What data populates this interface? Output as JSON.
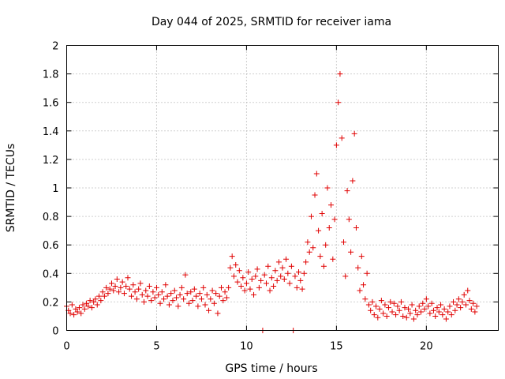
{
  "chart_data": {
    "type": "scatter",
    "title": "Day 044 of 2025, SRMTID for receiver iama",
    "xlabel": "GPS time / hours",
    "ylabel": "SRMTID / TECUs",
    "xlim": [
      0,
      24
    ],
    "ylim": [
      0,
      2
    ],
    "xticks": [
      0,
      5,
      10,
      15,
      20
    ],
    "xtick_labels": [
      "0",
      "5",
      "10",
      "15",
      "20"
    ],
    "yticks": [
      0,
      0.2,
      0.4,
      0.6,
      0.8,
      1.0,
      1.2,
      1.4,
      1.6,
      1.8,
      2.0
    ],
    "ytick_labels": [
      "0",
      "0.2",
      "0.4",
      "0.6",
      "0.8",
      "1",
      "1.2",
      "1.4",
      "1.6",
      "1.8",
      "2"
    ],
    "grid": true,
    "marker": "+",
    "series_color": "#e00000",
    "series": [
      {
        "name": "SRMTID",
        "points": [
          [
            0.0,
            0.17
          ],
          [
            0.1,
            0.14
          ],
          [
            0.2,
            0.12
          ],
          [
            0.3,
            0.18
          ],
          [
            0.4,
            0.11
          ],
          [
            0.5,
            0.15
          ],
          [
            0.6,
            0.13
          ],
          [
            0.7,
            0.16
          ],
          [
            0.8,
            0.12
          ],
          [
            0.9,
            0.18
          ],
          [
            1.0,
            0.15
          ],
          [
            1.1,
            0.19
          ],
          [
            1.2,
            0.17
          ],
          [
            1.3,
            0.21
          ],
          [
            1.4,
            0.16
          ],
          [
            1.5,
            0.2
          ],
          [
            1.6,
            0.22
          ],
          [
            1.7,
            0.18
          ],
          [
            1.8,
            0.24
          ],
          [
            1.9,
            0.21
          ],
          [
            2.0,
            0.27
          ],
          [
            2.1,
            0.24
          ],
          [
            2.2,
            0.3
          ],
          [
            2.3,
            0.26
          ],
          [
            2.4,
            0.29
          ],
          [
            2.5,
            0.33
          ],
          [
            2.6,
            0.28
          ],
          [
            2.7,
            0.31
          ],
          [
            2.8,
            0.36
          ],
          [
            2.9,
            0.27
          ],
          [
            3.0,
            0.3
          ],
          [
            3.1,
            0.34
          ],
          [
            3.2,
            0.26
          ],
          [
            3.3,
            0.31
          ],
          [
            3.4,
            0.37
          ],
          [
            3.5,
            0.29
          ],
          [
            3.6,
            0.24
          ],
          [
            3.7,
            0.32
          ],
          [
            3.8,
            0.27
          ],
          [
            3.9,
            0.22
          ],
          [
            4.0,
            0.29
          ],
          [
            4.1,
            0.33
          ],
          [
            4.2,
            0.25
          ],
          [
            4.3,
            0.2
          ],
          [
            4.4,
            0.28
          ],
          [
            4.5,
            0.24
          ],
          [
            4.6,
            0.31
          ],
          [
            4.7,
            0.21
          ],
          [
            4.8,
            0.27
          ],
          [
            4.9,
            0.23
          ],
          [
            5.0,
            0.3
          ],
          [
            5.1,
            0.25
          ],
          [
            5.2,
            0.19
          ],
          [
            5.3,
            0.27
          ],
          [
            5.4,
            0.22
          ],
          [
            5.5,
            0.32
          ],
          [
            5.6,
            0.24
          ],
          [
            5.7,
            0.18
          ],
          [
            5.8,
            0.26
          ],
          [
            5.9,
            0.21
          ],
          [
            6.0,
            0.28
          ],
          [
            6.1,
            0.23
          ],
          [
            6.2,
            0.17
          ],
          [
            6.3,
            0.25
          ],
          [
            6.4,
            0.3
          ],
          [
            6.5,
            0.22
          ],
          [
            6.6,
            0.39
          ],
          [
            6.7,
            0.26
          ],
          [
            6.8,
            0.19
          ],
          [
            6.9,
            0.27
          ],
          [
            7.0,
            0.21
          ],
          [
            7.1,
            0.29
          ],
          [
            7.2,
            0.24
          ],
          [
            7.3,
            0.17
          ],
          [
            7.4,
            0.26
          ],
          [
            7.5,
            0.22
          ],
          [
            7.6,
            0.3
          ],
          [
            7.7,
            0.18
          ],
          [
            7.8,
            0.25
          ],
          [
            7.9,
            0.14
          ],
          [
            8.0,
            0.22
          ],
          [
            8.1,
            0.28
          ],
          [
            8.2,
            0.19
          ],
          [
            8.3,
            0.26
          ],
          [
            8.4,
            0.12
          ],
          [
            8.5,
            0.24
          ],
          [
            8.6,
            0.3
          ],
          [
            8.7,
            0.21
          ],
          [
            8.8,
            0.27
          ],
          [
            8.9,
            0.23
          ],
          [
            9.0,
            0.3
          ],
          [
            9.1,
            0.44
          ],
          [
            9.2,
            0.52
          ],
          [
            9.3,
            0.38
          ],
          [
            9.4,
            0.46
          ],
          [
            9.5,
            0.34
          ],
          [
            9.6,
            0.42
          ],
          [
            9.7,
            0.31
          ],
          [
            9.8,
            0.37
          ],
          [
            9.9,
            0.28
          ],
          [
            10.0,
            0.33
          ],
          [
            10.1,
            0.41
          ],
          [
            10.2,
            0.29
          ],
          [
            10.3,
            0.36
          ],
          [
            10.4,
            0.25
          ],
          [
            10.5,
            0.38
          ],
          [
            10.6,
            0.43
          ],
          [
            10.7,
            0.3
          ],
          [
            10.8,
            0.35
          ],
          [
            10.9,
            0.0
          ],
          [
            11.0,
            0.39
          ],
          [
            11.1,
            0.33
          ],
          [
            11.2,
            0.45
          ],
          [
            11.3,
            0.28
          ],
          [
            11.4,
            0.37
          ],
          [
            11.5,
            0.31
          ],
          [
            11.6,
            0.42
          ],
          [
            11.7,
            0.35
          ],
          [
            11.8,
            0.48
          ],
          [
            11.9,
            0.38
          ],
          [
            12.0,
            0.44
          ],
          [
            12.1,
            0.36
          ],
          [
            12.2,
            0.5
          ],
          [
            12.3,
            0.4
          ],
          [
            12.4,
            0.33
          ],
          [
            12.5,
            0.45
          ],
          [
            12.6,
            0.0
          ],
          [
            12.7,
            0.38
          ],
          [
            12.8,
            0.3
          ],
          [
            12.9,
            0.41
          ],
          [
            13.0,
            0.35
          ],
          [
            13.1,
            0.29
          ],
          [
            13.2,
            0.4
          ],
          [
            13.3,
            0.48
          ],
          [
            13.4,
            0.62
          ],
          [
            13.5,
            0.55
          ],
          [
            13.6,
            0.8
          ],
          [
            13.7,
            0.58
          ],
          [
            13.8,
            0.95
          ],
          [
            13.9,
            1.1
          ],
          [
            14.0,
            0.7
          ],
          [
            14.1,
            0.52
          ],
          [
            14.2,
            0.82
          ],
          [
            14.3,
            0.45
          ],
          [
            14.4,
            0.6
          ],
          [
            14.5,
            1.0
          ],
          [
            14.6,
            0.72
          ],
          [
            14.7,
            0.88
          ],
          [
            14.8,
            0.5
          ],
          [
            14.9,
            0.78
          ],
          [
            15.0,
            1.3
          ],
          [
            15.1,
            1.6
          ],
          [
            15.2,
            1.8
          ],
          [
            15.3,
            1.35
          ],
          [
            15.4,
            0.62
          ],
          [
            15.5,
            0.38
          ],
          [
            15.6,
            0.98
          ],
          [
            15.7,
            0.78
          ],
          [
            15.8,
            0.55
          ],
          [
            15.9,
            1.05
          ],
          [
            16.0,
            1.38
          ],
          [
            16.1,
            0.72
          ],
          [
            16.2,
            0.44
          ],
          [
            16.3,
            0.28
          ],
          [
            16.4,
            0.52
          ],
          [
            16.5,
            0.32
          ],
          [
            16.6,
            0.22
          ],
          [
            16.7,
            0.4
          ],
          [
            16.8,
            0.18
          ],
          [
            16.9,
            0.14
          ],
          [
            17.0,
            0.2
          ],
          [
            17.1,
            0.11
          ],
          [
            17.2,
            0.17
          ],
          [
            17.3,
            0.09
          ],
          [
            17.4,
            0.15
          ],
          [
            17.5,
            0.21
          ],
          [
            17.6,
            0.12
          ],
          [
            17.7,
            0.18
          ],
          [
            17.8,
            0.1
          ],
          [
            17.9,
            0.16
          ],
          [
            18.0,
            0.2
          ],
          [
            18.1,
            0.13
          ],
          [
            18.2,
            0.19
          ],
          [
            18.3,
            0.11
          ],
          [
            18.4,
            0.17
          ],
          [
            18.5,
            0.14
          ],
          [
            18.6,
            0.2
          ],
          [
            18.7,
            0.1
          ],
          [
            18.8,
            0.16
          ],
          [
            18.9,
            0.09
          ],
          [
            19.0,
            0.15
          ],
          [
            19.1,
            0.12
          ],
          [
            19.2,
            0.18
          ],
          [
            19.3,
            0.08
          ],
          [
            19.4,
            0.14
          ],
          [
            19.5,
            0.11
          ],
          [
            19.6,
            0.17
          ],
          [
            19.7,
            0.13
          ],
          [
            19.8,
            0.19
          ],
          [
            19.9,
            0.15
          ],
          [
            20.0,
            0.22
          ],
          [
            20.1,
            0.17
          ],
          [
            20.2,
            0.12
          ],
          [
            20.3,
            0.19
          ],
          [
            20.4,
            0.14
          ],
          [
            20.5,
            0.1
          ],
          [
            20.6,
            0.16
          ],
          [
            20.7,
            0.13
          ],
          [
            20.8,
            0.18
          ],
          [
            20.9,
            0.11
          ],
          [
            21.0,
            0.15
          ],
          [
            21.1,
            0.08
          ],
          [
            21.2,
            0.13
          ],
          [
            21.3,
            0.17
          ],
          [
            21.4,
            0.11
          ],
          [
            21.5,
            0.2
          ],
          [
            21.6,
            0.14
          ],
          [
            21.7,
            0.18
          ],
          [
            21.8,
            0.22
          ],
          [
            21.9,
            0.16
          ],
          [
            22.0,
            0.2
          ],
          [
            22.1,
            0.25
          ],
          [
            22.2,
            0.18
          ],
          [
            22.3,
            0.28
          ],
          [
            22.4,
            0.21
          ],
          [
            22.5,
            0.15
          ],
          [
            22.6,
            0.19
          ],
          [
            22.7,
            0.13
          ],
          [
            22.8,
            0.17
          ]
        ]
      }
    ]
  }
}
